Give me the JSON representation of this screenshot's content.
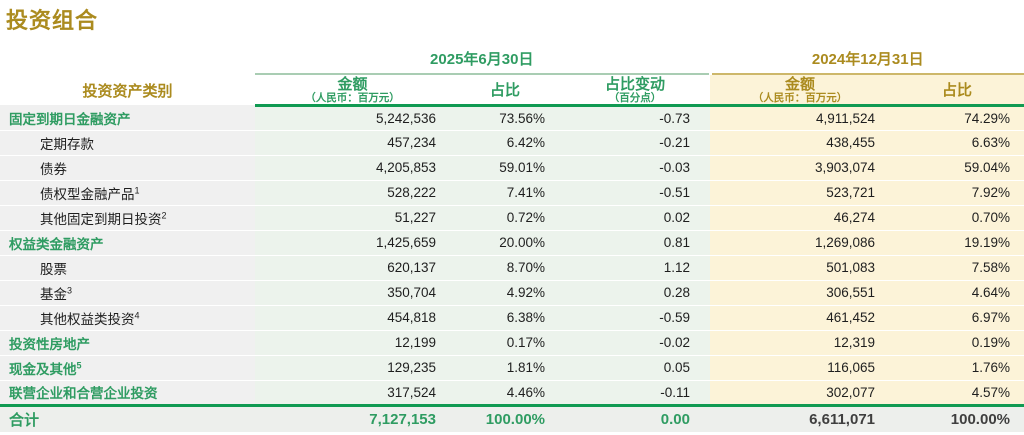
{
  "page_title": "投资组合",
  "colors": {
    "accent_gold": "#ab8b1f",
    "accent_green": "#2f9c62",
    "rule_green": "#109a52",
    "group_2025_bg": "#ecf3ec",
    "group_2024_bg": "#fcf3d8",
    "label_col_bg": "#f0f0f0",
    "total_row_bg": "#edefec"
  },
  "table": {
    "asset_class_header": "投资资产类别",
    "groups": [
      {
        "label": "2025年6月30日",
        "columns": [
          {
            "label": "金额",
            "note": "（人民币：百万元）"
          },
          {
            "label": "占比",
            "note": ""
          },
          {
            "label": "占比变动",
            "note": "（百分点）"
          }
        ]
      },
      {
        "label": "2024年12月31日",
        "columns": [
          {
            "label": "金额",
            "note": "（人民币：百万元）"
          },
          {
            "label": "占比",
            "note": ""
          }
        ]
      }
    ],
    "rows": [
      {
        "label": "固定到期日金融资产",
        "sup": "",
        "level": 0,
        "emphasis": true,
        "amount_2025": "5,242,536",
        "share_2025": "73.56%",
        "share_change": "-0.73",
        "amount_2024": "4,911,524",
        "share_2024": "74.29%"
      },
      {
        "label": "定期存款",
        "sup": "",
        "level": 1,
        "emphasis": false,
        "amount_2025": "457,234",
        "share_2025": "6.42%",
        "share_change": "-0.21",
        "amount_2024": "438,455",
        "share_2024": "6.63%"
      },
      {
        "label": "债券",
        "sup": "",
        "level": 1,
        "emphasis": false,
        "amount_2025": "4,205,853",
        "share_2025": "59.01%",
        "share_change": "-0.03",
        "amount_2024": "3,903,074",
        "share_2024": "59.04%"
      },
      {
        "label": "债权型金融产品",
        "sup": "1",
        "level": 1,
        "emphasis": false,
        "amount_2025": "528,222",
        "share_2025": "7.41%",
        "share_change": "-0.51",
        "amount_2024": "523,721",
        "share_2024": "7.92%"
      },
      {
        "label": "其他固定到期日投资",
        "sup": "2",
        "level": 1,
        "emphasis": false,
        "amount_2025": "51,227",
        "share_2025": "0.72%",
        "share_change": "0.02",
        "amount_2024": "46,274",
        "share_2024": "0.70%"
      },
      {
        "label": "权益类金融资产",
        "sup": "",
        "level": 0,
        "emphasis": true,
        "amount_2025": "1,425,659",
        "share_2025": "20.00%",
        "share_change": "0.81",
        "amount_2024": "1,269,086",
        "share_2024": "19.19%"
      },
      {
        "label": "股票",
        "sup": "",
        "level": 1,
        "emphasis": false,
        "amount_2025": "620,137",
        "share_2025": "8.70%",
        "share_change": "1.12",
        "amount_2024": "501,083",
        "share_2024": "7.58%"
      },
      {
        "label": "基金",
        "sup": "3",
        "level": 1,
        "emphasis": false,
        "amount_2025": "350,704",
        "share_2025": "4.92%",
        "share_change": "0.28",
        "amount_2024": "306,551",
        "share_2024": "4.64%"
      },
      {
        "label": "其他权益类投资",
        "sup": "4",
        "level": 1,
        "emphasis": false,
        "amount_2025": "454,818",
        "share_2025": "6.38%",
        "share_change": "-0.59",
        "amount_2024": "461,452",
        "share_2024": "6.97%"
      },
      {
        "label": "投资性房地产",
        "sup": "",
        "level": 0,
        "emphasis": true,
        "amount_2025": "12,199",
        "share_2025": "0.17%",
        "share_change": "-0.02",
        "amount_2024": "12,319",
        "share_2024": "0.19%"
      },
      {
        "label": "现金及其他",
        "sup": "5",
        "level": 0,
        "emphasis": true,
        "amount_2025": "129,235",
        "share_2025": "1.81%",
        "share_change": "0.05",
        "amount_2024": "116,065",
        "share_2024": "1.76%"
      },
      {
        "label": "联营企业和合营企业投资",
        "sup": "",
        "level": 0,
        "emphasis": true,
        "amount_2025": "317,524",
        "share_2025": "4.46%",
        "share_change": "-0.11",
        "amount_2024": "302,077",
        "share_2024": "4.57%"
      }
    ],
    "total": {
      "label": "合计",
      "amount_2025": "7,127,153",
      "share_2025": "100.00%",
      "share_change": "0.00",
      "amount_2024": "6,611,071",
      "share_2024": "100.00%"
    }
  }
}
